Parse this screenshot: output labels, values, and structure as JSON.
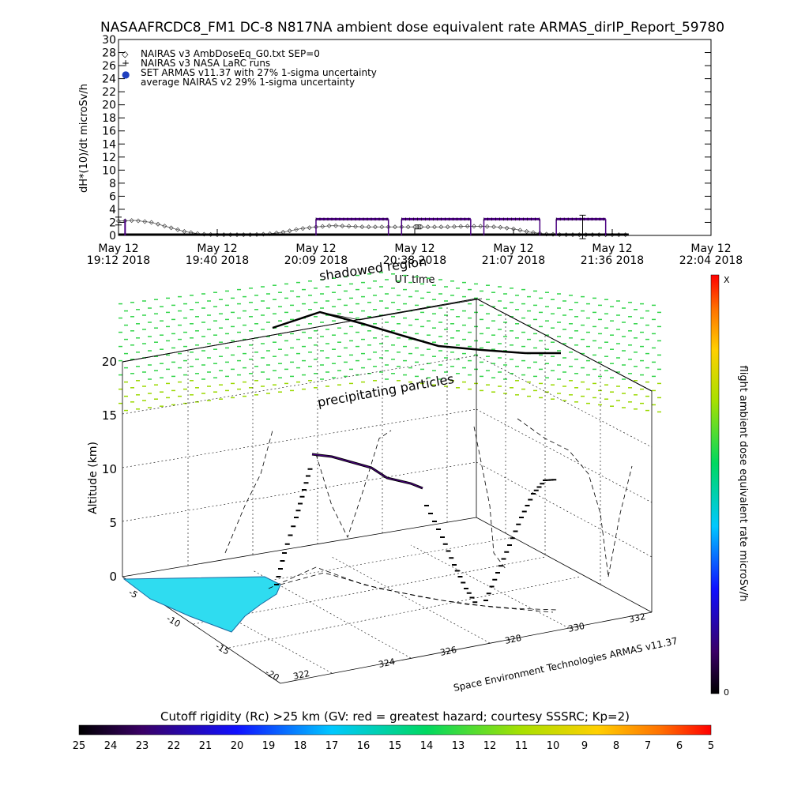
{
  "title": "NASAAFRCDC8_FM1 DC-8   N817NA ambient dose equivalent rate ARMAS_dirIP_Report_59780",
  "chart_data": [
    {
      "type": "line",
      "ylabel": "dH*(10)/dt microSv/h",
      "xlabel": "UT time",
      "ylim": [
        0,
        30
      ],
      "yticks": [
        0,
        2,
        4,
        6,
        8,
        10,
        12,
        14,
        16,
        18,
        20,
        22,
        24,
        26,
        28,
        30
      ],
      "xtick_labels": [
        {
          "top": "May 12",
          "bottom": "19:12 2018"
        },
        {
          "top": "May 12",
          "bottom": "19:40 2018"
        },
        {
          "top": "May 12",
          "bottom": "20:09 2018"
        },
        {
          "top": "May 12",
          "bottom": "20:38 2018"
        },
        {
          "top": "May 12",
          "bottom": "21:07 2018"
        },
        {
          "top": "May 12",
          "bottom": "21:36 2018"
        },
        {
          "top": "May 12",
          "bottom": "22:04 2018"
        }
      ],
      "legend_position": "top-left",
      "legend": [
        {
          "symbol": "◇",
          "label": "NAIRAS v3 AmbDoseEq_G0.txt SEP=0"
        },
        {
          "symbol": "+",
          "label": "NAIRAS v3 NASA LaRC runs"
        },
        {
          "symbol": "●",
          "label": "SET ARMAS v11.37 with 27% 1-sigma uncertainty"
        },
        {
          "symbol": "",
          "label": "average NAIRAS v2 29% 1-sigma uncertainty"
        }
      ],
      "series": [
        {
          "name": "NAIRAS v3 AmbDoseEq_G0.txt SEP=0",
          "x_minutes": [
            0,
            5,
            10,
            15,
            20,
            25,
            30,
            35,
            40,
            45,
            50,
            55,
            60,
            65,
            70,
            75,
            80,
            85,
            90,
            95,
            100,
            105,
            110,
            115,
            120,
            125,
            130,
            135,
            140,
            145,
            150,
            155
          ],
          "values": [
            2.2,
            2.3,
            2.0,
            1.3,
            0.6,
            0.2,
            0.1,
            0.1,
            0.1,
            0.2,
            0.5,
            1.0,
            1.3,
            1.5,
            1.4,
            1.3,
            1.3,
            1.3,
            1.3,
            1.3,
            1.3,
            1.4,
            1.4,
            1.3,
            1.0,
            0.5,
            0.2,
            0.1,
            0.1,
            0.1,
            0.1,
            0.1
          ]
        },
        {
          "name": "SET ARMAS v11.37 with 27% 1-sigma uncertainty",
          "color": "#4b0082",
          "segments": [
            {
              "x_start": 60,
              "x_end": 82,
              "value": 2.5
            },
            {
              "x_start": 86,
              "x_end": 107,
              "value": 2.5
            },
            {
              "x_start": 111,
              "x_end": 128,
              "value": 2.5
            },
            {
              "x_start": 133,
              "x_end": 148,
              "value": 2.5
            }
          ],
          "errorbars": [
            {
              "x": 0,
              "value": 2.2,
              "err": 0.6
            },
            {
              "x": 91,
              "value": 1.3,
              "err": 0.3
            },
            {
              "x": 141,
              "value": 1.3,
              "err": 1.8
            }
          ]
        }
      ]
    },
    {
      "type": "scatter",
      "title": "",
      "zlabel": "Altitude (km)",
      "zticks": [
        0,
        5,
        10,
        15,
        20
      ],
      "x_ticks": [
        "322",
        "324",
        "326",
        "328",
        "330",
        "332"
      ],
      "y_ticks": [
        "-5",
        "-10",
        "-15",
        "-20"
      ],
      "annotations": [
        "shadowed region",
        "precipitating particles",
        "Space Environment Technologies ARMAS v11.37"
      ],
      "colorbar": {
        "label": "flight ambient dose equivalent rate microSv/h",
        "top_label": "X",
        "bottom_label": "0"
      },
      "flight_path_altitude_km": [
        11.5,
        11.2,
        10.8,
        10.4,
        10.0,
        9.6,
        9.2,
        8.8,
        8.5
      ],
      "grid": true
    },
    {
      "type": "heatmap",
      "title": "Cutoff rigidity (Rc) >25 km (GV: red = greatest hazard; courtesy SSSRC; Kp=2)",
      "colorbar_ticks": [
        "25",
        "24",
        "23",
        "22",
        "21",
        "20",
        "19",
        "18",
        "17",
        "16",
        "15",
        "14",
        "13",
        "12",
        "11",
        "10",
        "9",
        "8",
        "7",
        "6",
        "5"
      ]
    }
  ]
}
